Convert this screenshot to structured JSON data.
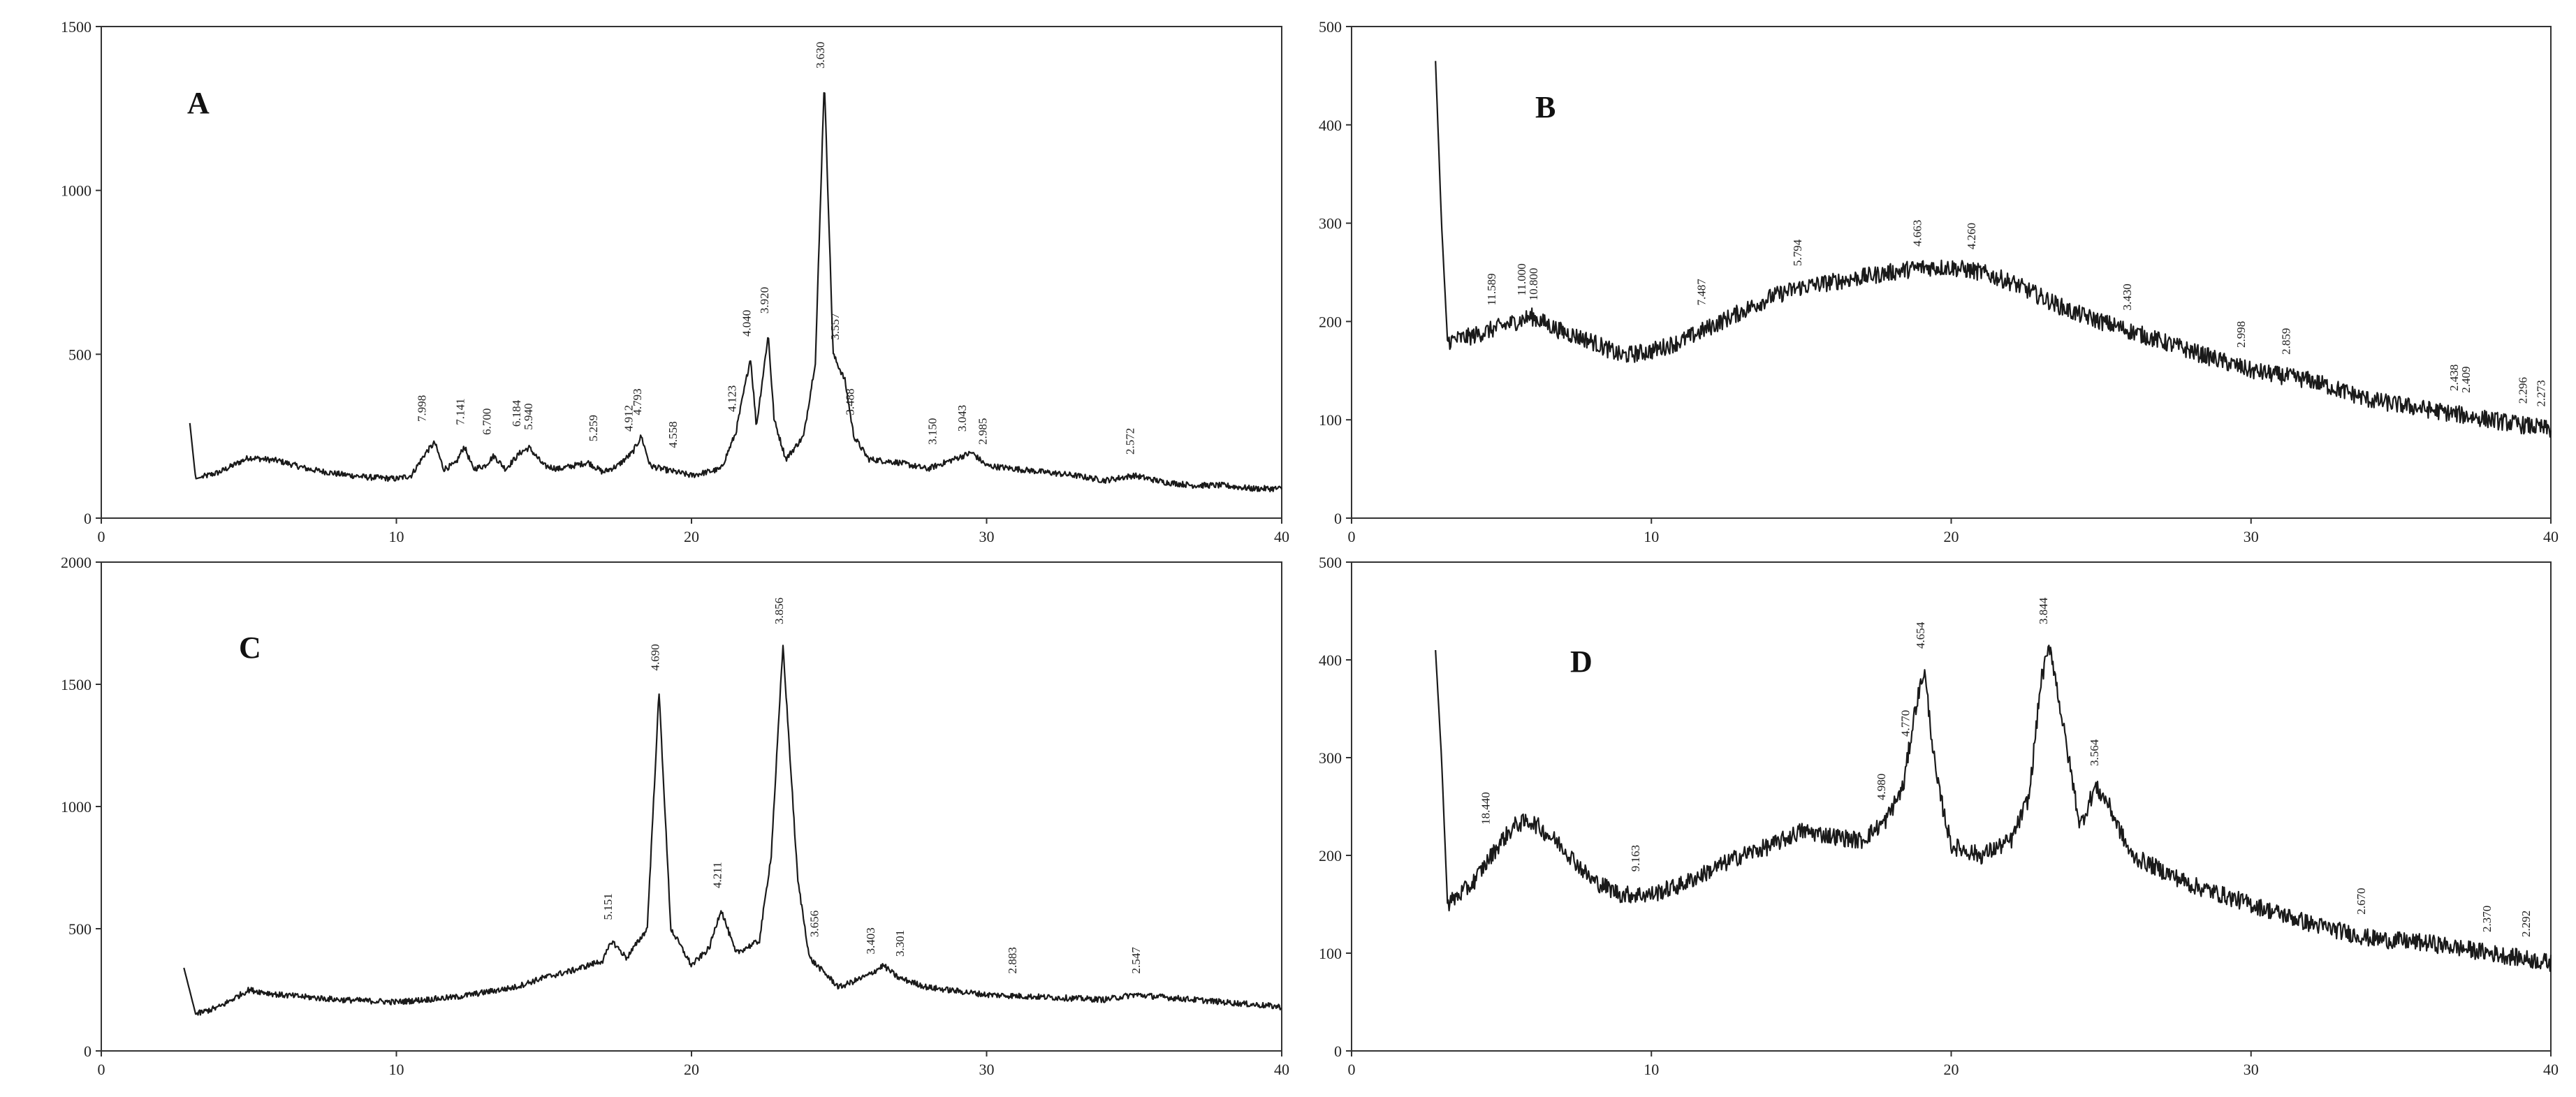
{
  "chart_data": [
    {
      "type": "line",
      "panel": "A",
      "xlim": [
        0,
        40
      ],
      "ylim": [
        0,
        1500
      ],
      "x_ticks": [
        "0",
        "10",
        "20",
        "30",
        "40"
      ],
      "y_ticks": [
        "0",
        "500",
        "1000",
        "1500"
      ],
      "grid": false,
      "profile": [
        [
          3,
          290
        ],
        [
          3.2,
          120
        ],
        [
          4,
          140
        ],
        [
          5,
          185
        ],
        [
          6,
          175
        ],
        [
          7,
          150
        ],
        [
          8,
          135
        ],
        [
          9,
          125
        ],
        [
          10,
          120
        ],
        [
          10.5,
          130
        ],
        [
          11,
          200
        ],
        [
          11.3,
          230
        ],
        [
          11.6,
          150
        ],
        [
          12,
          165
        ],
        [
          12.3,
          220
        ],
        [
          12.6,
          150
        ],
        [
          13,
          160
        ],
        [
          13.3,
          190
        ],
        [
          13.7,
          150
        ],
        [
          14.2,
          200
        ],
        [
          14.5,
          215
        ],
        [
          15,
          160
        ],
        [
          15.5,
          150
        ],
        [
          16.5,
          170
        ],
        [
          17,
          140
        ],
        [
          17.5,
          160
        ],
        [
          18,
          200
        ],
        [
          18.3,
          250
        ],
        [
          18.6,
          160
        ],
        [
          19,
          150
        ],
        [
          19.5,
          140
        ],
        [
          20,
          130
        ],
        [
          21,
          150
        ],
        [
          21.5,
          260
        ],
        [
          22,
          490
        ],
        [
          22.2,
          280
        ],
        [
          22.6,
          560
        ],
        [
          22.8,
          300
        ],
        [
          23.2,
          180
        ],
        [
          23.8,
          250
        ],
        [
          24.2,
          480
        ],
        [
          24.5,
          1340
        ],
        [
          24.8,
          500
        ],
        [
          25.2,
          420
        ],
        [
          25.5,
          250
        ],
        [
          26,
          180
        ],
        [
          27,
          170
        ],
        [
          28,
          150
        ],
        [
          29.5,
          200
        ],
        [
          30,
          160
        ],
        [
          31,
          150
        ],
        [
          32,
          140
        ],
        [
          33,
          130
        ],
        [
          34,
          115
        ],
        [
          35,
          130
        ],
        [
          36,
          110
        ],
        [
          37,
          100
        ],
        [
          38,
          100
        ],
        [
          39,
          90
        ],
        [
          40,
          90
        ]
      ],
      "peaks": [
        {
          "x": 11.0,
          "y": 230,
          "label": "7.998"
        },
        {
          "x": 12.3,
          "y": 220,
          "label": "7.141"
        },
        {
          "x": 13.2,
          "y": 190,
          "label": "6.700"
        },
        {
          "x": 14.2,
          "y": 215,
          "label": "6.184"
        },
        {
          "x": 14.6,
          "y": 205,
          "label": "5.940"
        },
        {
          "x": 16.8,
          "y": 170,
          "label": "5.259"
        },
        {
          "x": 18.0,
          "y": 200,
          "label": "4.912"
        },
        {
          "x": 18.3,
          "y": 250,
          "label": "4.793"
        },
        {
          "x": 19.5,
          "y": 150,
          "label": "4.558"
        },
        {
          "x": 21.5,
          "y": 260,
          "label": "4.123"
        },
        {
          "x": 22.0,
          "y": 490,
          "label": "4.040"
        },
        {
          "x": 22.6,
          "y": 560,
          "label": "3.920"
        },
        {
          "x": 24.5,
          "y": 1340,
          "label": "3.630"
        },
        {
          "x": 25.0,
          "y": 480,
          "label": "3.557"
        },
        {
          "x": 25.5,
          "y": 250,
          "label": "3.488"
        },
        {
          "x": 28.3,
          "y": 160,
          "label": "3.150"
        },
        {
          "x": 29.3,
          "y": 200,
          "label": "3.043"
        },
        {
          "x": 30.0,
          "y": 160,
          "label": "2.985"
        },
        {
          "x": 35.0,
          "y": 130,
          "label": "2.572"
        }
      ]
    },
    {
      "type": "line",
      "panel": "B",
      "xlim": [
        0,
        40
      ],
      "ylim": [
        0,
        500
      ],
      "x_ticks": [
        "0",
        "10",
        "20",
        "30",
        "40"
      ],
      "y_ticks": [
        "0",
        "100",
        "200",
        "300",
        "400",
        "500"
      ],
      "grid": false,
      "profile": [
        [
          2.8,
          465
        ],
        [
          3,
          300
        ],
        [
          3.2,
          180
        ],
        [
          4,
          185
        ],
        [
          5,
          195
        ],
        [
          6,
          205
        ],
        [
          7,
          190
        ],
        [
          8,
          180
        ],
        [
          9,
          165
        ],
        [
          10,
          170
        ],
        [
          11,
          180
        ],
        [
          12,
          195
        ],
        [
          13,
          210
        ],
        [
          14,
          225
        ],
        [
          15,
          235
        ],
        [
          16,
          240
        ],
        [
          17,
          245
        ],
        [
          18,
          250
        ],
        [
          19,
          255
        ],
        [
          20,
          255
        ],
        [
          21,
          250
        ],
        [
          22,
          240
        ],
        [
          23,
          225
        ],
        [
          24,
          210
        ],
        [
          25,
          200
        ],
        [
          26,
          190
        ],
        [
          27,
          180
        ],
        [
          28,
          170
        ],
        [
          29,
          160
        ],
        [
          30,
          150
        ],
        [
          31,
          145
        ],
        [
          32,
          140
        ],
        [
          33,
          130
        ],
        [
          34,
          120
        ],
        [
          35,
          115
        ],
        [
          36,
          110
        ],
        [
          37,
          105
        ],
        [
          38,
          100
        ],
        [
          39,
          95
        ],
        [
          40,
          90
        ]
      ],
      "peaks": [
        {
          "x": 4.8,
          "y": 195,
          "label": "11.589"
        },
        {
          "x": 5.8,
          "y": 205,
          "label": "11.000"
        },
        {
          "x": 6.2,
          "y": 200,
          "label": "10.800"
        },
        {
          "x": 11.8,
          "y": 195,
          "label": "7.487"
        },
        {
          "x": 15.0,
          "y": 235,
          "label": "5.794"
        },
        {
          "x": 19.0,
          "y": 255,
          "label": "4.663"
        },
        {
          "x": 20.8,
          "y": 252,
          "label": "4.260"
        },
        {
          "x": 26.0,
          "y": 190,
          "label": "3.430"
        },
        {
          "x": 29.8,
          "y": 152,
          "label": "2.998"
        },
        {
          "x": 31.3,
          "y": 145,
          "label": "2.859"
        },
        {
          "x": 36.9,
          "y": 108,
          "label": "2.438"
        },
        {
          "x": 37.3,
          "y": 106,
          "label": "2.409"
        },
        {
          "x": 39.2,
          "y": 95,
          "label": "2.296"
        },
        {
          "x": 39.8,
          "y": 92,
          "label": "2.273"
        }
      ]
    },
    {
      "type": "line",
      "panel": "C",
      "xlim": [
        0,
        40
      ],
      "ylim": [
        0,
        2000
      ],
      "x_ticks": [
        "0",
        "10",
        "20",
        "30",
        "40"
      ],
      "y_ticks": [
        "0",
        "500",
        "1000",
        "1500",
        "2000"
      ],
      "grid": false,
      "profile": [
        [
          2.8,
          340
        ],
        [
          3.2,
          150
        ],
        [
          4,
          180
        ],
        [
          5,
          250
        ],
        [
          6,
          230
        ],
        [
          8,
          210
        ],
        [
          10,
          200
        ],
        [
          12,
          220
        ],
        [
          14,
          260
        ],
        [
          15,
          300
        ],
        [
          16,
          330
        ],
        [
          17,
          370
        ],
        [
          17.3,
          450
        ],
        [
          17.8,
          380
        ],
        [
          18.5,
          500
        ],
        [
          18.9,
          1470
        ],
        [
          19.3,
          500
        ],
        [
          20,
          350
        ],
        [
          20.6,
          420
        ],
        [
          21,
          580
        ],
        [
          21.5,
          400
        ],
        [
          22.3,
          450
        ],
        [
          22.7,
          800
        ],
        [
          23.1,
          1660
        ],
        [
          23.6,
          700
        ],
        [
          24,
          380
        ],
        [
          25,
          260
        ],
        [
          26,
          310
        ],
        [
          26.5,
          350
        ],
        [
          27,
          300
        ],
        [
          28,
          260
        ],
        [
          30,
          230
        ],
        [
          32,
          220
        ],
        [
          34,
          210
        ],
        [
          35,
          230
        ],
        [
          36,
          220
        ],
        [
          38,
          200
        ],
        [
          40,
          180
        ]
      ],
      "peaks": [
        {
          "x": 17.3,
          "y": 450,
          "label": "5.151"
        },
        {
          "x": 18.9,
          "y": 1470,
          "label": "4.690"
        },
        {
          "x": 21.0,
          "y": 580,
          "label": "4.211"
        },
        {
          "x": 23.1,
          "y": 1660,
          "label": "3.856"
        },
        {
          "x": 24.3,
          "y": 380,
          "label": "3.656"
        },
        {
          "x": 26.2,
          "y": 310,
          "label": "3.403"
        },
        {
          "x": 27.2,
          "y": 300,
          "label": "3.301"
        },
        {
          "x": 31.0,
          "y": 230,
          "label": "2.883"
        },
        {
          "x": 35.2,
          "y": 230,
          "label": "2.547"
        }
      ]
    },
    {
      "type": "line",
      "panel": "D",
      "xlim": [
        0,
        40
      ],
      "ylim": [
        0,
        500
      ],
      "x_ticks": [
        "0",
        "10",
        "20",
        "30",
        "40"
      ],
      "y_ticks": [
        "0",
        "100",
        "200",
        "300",
        "400",
        "500"
      ],
      "grid": false,
      "profile": [
        [
          2.8,
          410
        ],
        [
          3,
          300
        ],
        [
          3.2,
          150
        ],
        [
          4,
          170
        ],
        [
          5,
          215
        ],
        [
          5.5,
          232
        ],
        [
          6,
          235
        ],
        [
          7,
          210
        ],
        [
          8,
          175
        ],
        [
          9,
          160
        ],
        [
          10,
          160
        ],
        [
          11,
          170
        ],
        [
          12,
          185
        ],
        [
          13,
          200
        ],
        [
          14,
          210
        ],
        [
          15,
          225
        ],
        [
          16,
          220
        ],
        [
          17,
          215
        ],
        [
          17.8,
          235
        ],
        [
          18.4,
          270
        ],
        [
          18.8,
          350
        ],
        [
          19.1,
          390
        ],
        [
          19.5,
          280
        ],
        [
          20,
          210
        ],
        [
          21,
          200
        ],
        [
          22,
          215
        ],
        [
          22.6,
          260
        ],
        [
          23,
          380
        ],
        [
          23.3,
          415
        ],
        [
          23.8,
          320
        ],
        [
          24.3,
          230
        ],
        [
          24.8,
          270
        ],
        [
          25.2,
          255
        ],
        [
          26,
          200
        ],
        [
          28,
          170
        ],
        [
          30,
          150
        ],
        [
          32,
          130
        ],
        [
          34,
          115
        ],
        [
          36,
          110
        ],
        [
          38,
          100
        ],
        [
          40,
          90
        ]
      ],
      "peaks": [
        {
          "x": 4.6,
          "y": 210,
          "label": "18.440"
        },
        {
          "x": 9.6,
          "y": 162,
          "label": "9.163"
        },
        {
          "x": 17.8,
          "y": 235,
          "label": "4.980"
        },
        {
          "x": 18.6,
          "y": 300,
          "label": "4.770"
        },
        {
          "x": 19.1,
          "y": 390,
          "label": "4.654"
        },
        {
          "x": 23.2,
          "y": 415,
          "label": "3.844"
        },
        {
          "x": 24.9,
          "y": 270,
          "label": "3.564"
        },
        {
          "x": 33.8,
          "y": 118,
          "label": "2.670"
        },
        {
          "x": 38.0,
          "y": 100,
          "label": "2.370"
        },
        {
          "x": 39.3,
          "y": 95,
          "label": "2.292"
        }
      ]
    }
  ]
}
